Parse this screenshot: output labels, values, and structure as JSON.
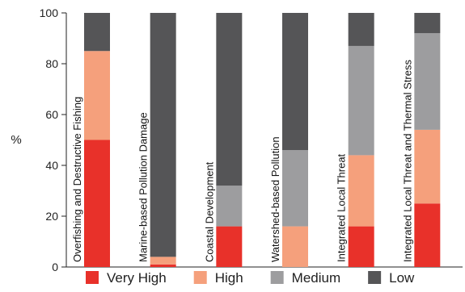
{
  "chart_data": {
    "type": "bar",
    "stacked": true,
    "ylabel": "%",
    "ylim": [
      0,
      100
    ],
    "yticks": [
      0,
      20,
      40,
      60,
      80,
      100
    ],
    "grid": false,
    "legend_position": "bottom",
    "categories": [
      "Overfishing and Destructive Fishing",
      "Marine-based Pollution Damage",
      "Coastal Development",
      "Watershed-based Pollution",
      "Integrated Local Threat",
      "Integrated Local Threat and Thermal Stress"
    ],
    "series": [
      {
        "name": "Very High",
        "color": "#e8312a",
        "values": [
          50,
          1,
          16,
          0,
          16,
          25
        ]
      },
      {
        "name": "High",
        "color": "#f5a07c",
        "values": [
          35,
          3,
          0,
          16,
          28,
          29
        ]
      },
      {
        "name": "Medium",
        "color": "#9d9d9f",
        "values": [
          0,
          0,
          16,
          30,
          43,
          38
        ]
      },
      {
        "name": "Low",
        "color": "#555557",
        "values": [
          15,
          96,
          68,
          54,
          13,
          8
        ]
      }
    ]
  }
}
